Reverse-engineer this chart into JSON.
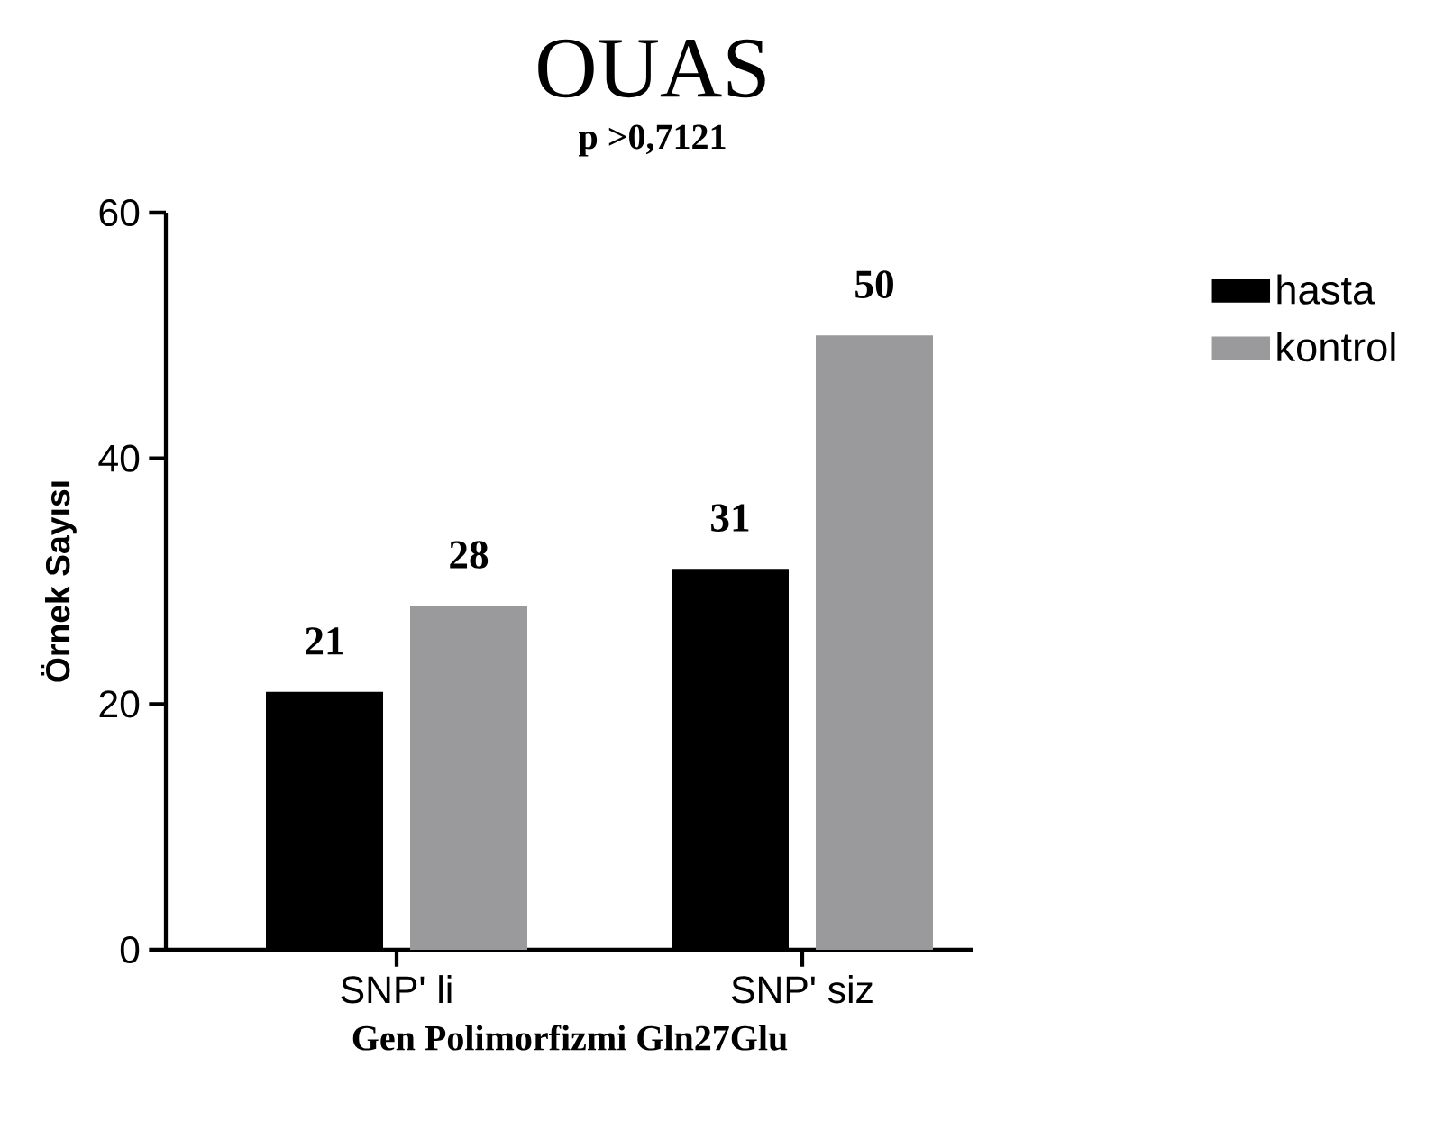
{
  "chart_data": {
    "type": "bar",
    "title": "OUAS",
    "subtitle": "p >0,7121",
    "xlabel": "Gen Polimorfizmi Gln27Glu",
    "ylabel": "Örnek Sayısı",
    "categories": [
      "SNP' li",
      "SNP' siz"
    ],
    "series": [
      {
        "name": "hasta",
        "color": "#000000",
        "values": [
          21,
          31
        ]
      },
      {
        "name": "kontrol",
        "color": "#9a9a9c",
        "values": [
          28,
          50
        ]
      }
    ],
    "ylim": [
      0,
      60
    ],
    "yticks": [
      0,
      20,
      40,
      60
    ],
    "data_labels": true,
    "legend": "top right",
    "grid": false
  }
}
